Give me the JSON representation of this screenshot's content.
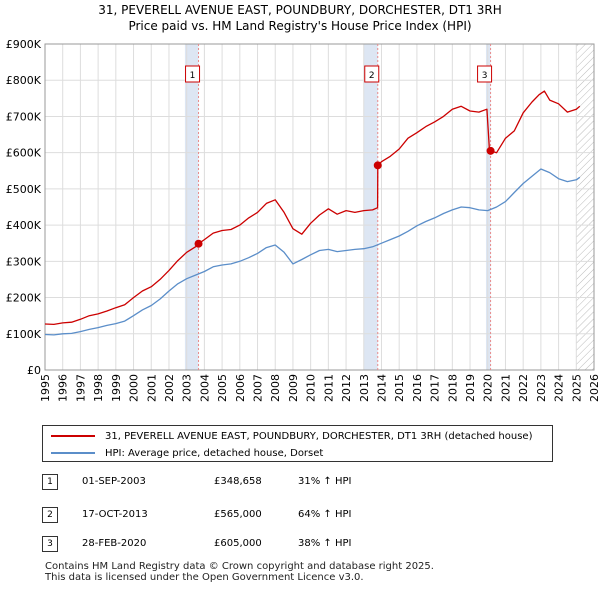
{
  "title_line1": "31, PEVERELL AVENUE EAST, POUNDBURY, DORCHESTER, DT1 3RH",
  "title_line2": "Price paid vs. HM Land Registry's House Price Index (HPI)",
  "colors": {
    "property_line": "#cc0000",
    "hpi_line": "#5b8ec9",
    "shade": "#dde6f3",
    "grid": "#dddddd",
    "vline": "#e88a8a",
    "future_hatch": "#bbbbbb"
  },
  "chart_data": {
    "type": "line",
    "title": "31, PEVERELL AVENUE EAST, POUNDBURY, DORCHESTER, DT1 3RH — Price paid vs. HM Land Registry's House Price Index (HPI)",
    "xlabel": "",
    "ylabel": "",
    "xlim": [
      1995,
      2026
    ],
    "ylim": [
      0,
      900000
    ],
    "x_ticks": [
      1995,
      1996,
      1997,
      1998,
      1999,
      2000,
      2001,
      2002,
      2003,
      2004,
      2005,
      2006,
      2007,
      2008,
      2009,
      2010,
      2011,
      2012,
      2013,
      2014,
      2015,
      2016,
      2017,
      2018,
      2019,
      2020,
      2021,
      2022,
      2023,
      2024,
      2025,
      2026
    ],
    "y_ticks": [
      {
        "value": 0,
        "label": "£0"
      },
      {
        "value": 100000,
        "label": "£100K"
      },
      {
        "value": 200000,
        "label": "£200K"
      },
      {
        "value": 300000,
        "label": "£300K"
      },
      {
        "value": 400000,
        "label": "£400K"
      },
      {
        "value": 500000,
        "label": "£500K"
      },
      {
        "value": 600000,
        "label": "£600K"
      },
      {
        "value": 700000,
        "label": "£700K"
      },
      {
        "value": 800000,
        "label": "£800K"
      },
      {
        "value": 900000,
        "label": "£900K"
      }
    ],
    "shaded_ranges": [
      [
        2002.9,
        2003.67
      ],
      [
        2013.0,
        2013.79
      ],
      [
        2019.9,
        2020.16
      ]
    ],
    "future_from": 2025.0,
    "series": [
      {
        "name": "31, PEVERELL AVENUE EAST, POUNDBURY, DORCHESTER, DT1 3RH (detached house)",
        "color": "#cc0000",
        "x": [
          1995.0,
          1995.5,
          1996.0,
          1996.5,
          1997.0,
          1997.5,
          1998.0,
          1998.5,
          1999.0,
          1999.5,
          2000.0,
          2000.5,
          2001.0,
          2001.5,
          2002.0,
          2002.5,
          2003.0,
          2003.5,
          2003.67,
          2004.0,
          2004.5,
          2005.0,
          2005.5,
          2006.0,
          2006.5,
          2007.0,
          2007.5,
          2008.0,
          2008.5,
          2009.0,
          2009.5,
          2010.0,
          2010.5,
          2011.0,
          2011.5,
          2012.0,
          2012.5,
          2013.0,
          2013.5,
          2013.78,
          2013.79,
          2014.0,
          2014.5,
          2015.0,
          2015.5,
          2016.0,
          2016.5,
          2017.0,
          2017.5,
          2018.0,
          2018.5,
          2019.0,
          2019.5,
          2019.95,
          2020.1,
          2020.16,
          2020.5,
          2021.0,
          2021.5,
          2022.0,
          2022.5,
          2022.9,
          2023.2,
          2023.5,
          2024.0,
          2024.5,
          2025.0,
          2025.2
        ],
        "values": [
          127000,
          126000,
          130000,
          132000,
          140000,
          150000,
          155000,
          163000,
          172000,
          180000,
          200000,
          218000,
          230000,
          250000,
          275000,
          302000,
          325000,
          340000,
          348658,
          360000,
          378000,
          385000,
          388000,
          400000,
          420000,
          435000,
          460000,
          470000,
          435000,
          390000,
          375000,
          405000,
          428000,
          445000,
          430000,
          440000,
          435000,
          440000,
          442000,
          448000,
          565000,
          575000,
          590000,
          610000,
          640000,
          655000,
          672000,
          685000,
          700000,
          720000,
          728000,
          715000,
          712000,
          720000,
          605000,
          605000,
          600000,
          640000,
          660000,
          710000,
          740000,
          760000,
          770000,
          745000,
          735000,
          712000,
          720000,
          728000
        ]
      },
      {
        "name": "HPI: Average price, detached house, Dorset",
        "color": "#5b8ec9",
        "x": [
          1995.0,
          1995.5,
          1996.0,
          1996.5,
          1997.0,
          1997.5,
          1998.0,
          1998.5,
          1999.0,
          1999.5,
          2000.0,
          2000.5,
          2001.0,
          2001.5,
          2002.0,
          2002.5,
          2003.0,
          2003.5,
          2004.0,
          2004.5,
          2005.0,
          2005.5,
          2006.0,
          2006.5,
          2007.0,
          2007.5,
          2008.0,
          2008.5,
          2009.0,
          2009.5,
          2010.0,
          2010.5,
          2011.0,
          2011.5,
          2012.0,
          2012.5,
          2013.0,
          2013.5,
          2014.0,
          2014.5,
          2015.0,
          2015.5,
          2016.0,
          2016.5,
          2017.0,
          2017.5,
          2018.0,
          2018.5,
          2019.0,
          2019.5,
          2020.0,
          2020.5,
          2021.0,
          2021.5,
          2022.0,
          2022.5,
          2023.0,
          2023.5,
          2024.0,
          2024.5,
          2025.0,
          2025.2
        ],
        "values": [
          98000,
          97000,
          100000,
          101000,
          106000,
          112000,
          117000,
          123000,
          128000,
          135000,
          150000,
          166000,
          178000,
          196000,
          218000,
          238000,
          252000,
          262000,
          272000,
          285000,
          290000,
          293000,
          300000,
          310000,
          322000,
          338000,
          345000,
          325000,
          293000,
          305000,
          318000,
          330000,
          333000,
          327000,
          330000,
          333000,
          335000,
          340000,
          350000,
          360000,
          370000,
          383000,
          398000,
          410000,
          420000,
          432000,
          442000,
          450000,
          448000,
          442000,
          440000,
          450000,
          465000,
          490000,
          515000,
          535000,
          555000,
          545000,
          528000,
          520000,
          525000,
          532000
        ]
      }
    ],
    "annotations": [
      {
        "label": "1",
        "x": 2003.67,
        "y": 348658
      },
      {
        "label": "2",
        "x": 2013.79,
        "y": 565000
      },
      {
        "label": "3",
        "x": 2020.16,
        "y": 605000
      }
    ]
  },
  "legend": {
    "property_label": "31, PEVERELL AVENUE EAST, POUNDBURY, DORCHESTER, DT1 3RH (detached house)",
    "hpi_label": "HPI: Average price, detached house, Dorset"
  },
  "sales": [
    {
      "num": "1",
      "date": "01-SEP-2003",
      "price": "£348,658",
      "hpi": "31% ↑ HPI"
    },
    {
      "num": "2",
      "date": "17-OCT-2013",
      "price": "£565,000",
      "hpi": "64% ↑ HPI"
    },
    {
      "num": "3",
      "date": "28-FEB-2020",
      "price": "£605,000",
      "hpi": "38% ↑ HPI"
    }
  ],
  "footer": {
    "line1": "Contains HM Land Registry data © Crown copyright and database right 2025.",
    "line2": "This data is licensed under the Open Government Licence v3.0."
  }
}
